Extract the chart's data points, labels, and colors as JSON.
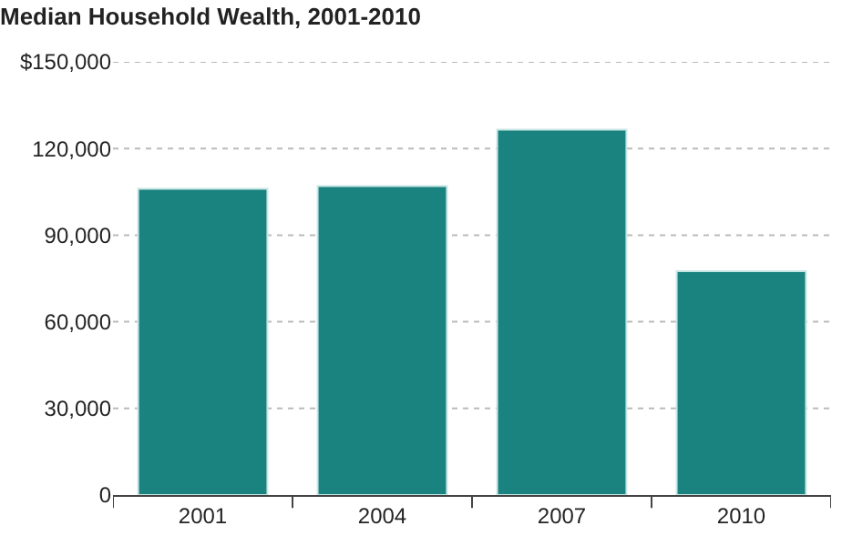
{
  "chart_data": {
    "type": "bar",
    "title": "Median Household Wealth, 2001-2010",
    "categories": [
      "2001",
      "2004",
      "2007",
      "2010"
    ],
    "values": [
      106000,
      107000,
      126500,
      77500
    ],
    "color": "#1a827f",
    "ylim": [
      0,
      150000
    ],
    "yticks": [
      0,
      {
        "value": 30000,
        "label": "30,000"
      },
      {
        "value": 60000,
        "label": "60,000"
      },
      {
        "value": 90000,
        "label": "90,000"
      },
      {
        "value": 120000,
        "label": "120,000"
      },
      {
        "value": 150000,
        "label": "$150,000"
      }
    ],
    "grid": "y"
  }
}
